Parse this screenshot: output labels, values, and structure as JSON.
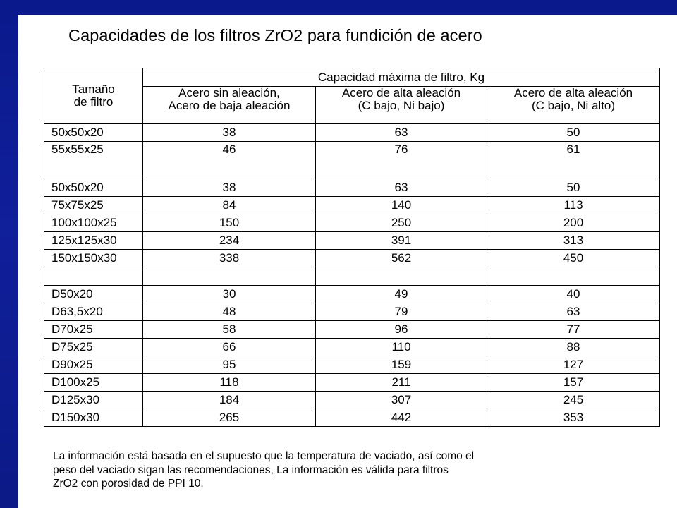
{
  "slide": {
    "title": "Capacidades de los filtros ZrO2 para fundición de acero"
  },
  "table": {
    "size_header": [
      "Tamaño",
      "de filtro"
    ],
    "group_header": "Capacidad máxima de filtro, Kg",
    "columns": [
      [
        "Acero sin aleación,",
        "Acero de baja aleación"
      ],
      [
        "Acero de alta aleación",
        "(C bajo, Ni bajo)"
      ],
      [
        "Acero de alta aleación",
        "(C bajo, Ni alto)"
      ]
    ],
    "rows": [
      {
        "size": "50x50x20",
        "v1": "38",
        "v2": "63",
        "v3": "50"
      },
      {
        "size": "55x55x25",
        "v1": "46",
        "v2": "76",
        "v3": "61",
        "tall": true
      },
      {
        "size": "50x50x20",
        "v1": "38",
        "v2": "63",
        "v3": "50"
      },
      {
        "size": "75x75x25",
        "v1": "84",
        "v2": "140",
        "v3": "113"
      },
      {
        "size": "100x100x25",
        "v1": "150",
        "v2": "250",
        "v3": "200"
      },
      {
        "size": "125x125x30",
        "v1": "234",
        "v2": "391",
        "v3": "313"
      },
      {
        "size": "150x150x30",
        "v1": "338",
        "v2": "562",
        "v3": "450"
      },
      {
        "size": "",
        "v1": "",
        "v2": "",
        "v3": "",
        "blank": true
      },
      {
        "size": "D50x20",
        "v1": "30",
        "v2": "49",
        "v3": "40"
      },
      {
        "size": "D63,5x20",
        "v1": "48",
        "v2": "79",
        "v3": "63"
      },
      {
        "size": "D70x25",
        "v1": "58",
        "v2": "96",
        "v3": "77"
      },
      {
        "size": "D75x25",
        "v1": "66",
        "v2": "110",
        "v3": "88"
      },
      {
        "size": "D90x25",
        "v1": "95",
        "v2": "159",
        "v3": "127"
      },
      {
        "size": "D100x25",
        "v1": "118",
        "v2": "211",
        "v3": "157"
      },
      {
        "size": "D125x30",
        "v1": "184",
        "v2": "307",
        "v3": "245"
      },
      {
        "size": "D150x30",
        "v1": "265",
        "v2": "442",
        "v3": "353"
      }
    ]
  },
  "note": [
    "La información está basada en el supuesto que la temperatura de vaciado, así como el",
    "peso del vaciado sigan las recomendaciones, La información es válida para filtros",
    "ZrO2 con porosidad de PPI 10."
  ]
}
